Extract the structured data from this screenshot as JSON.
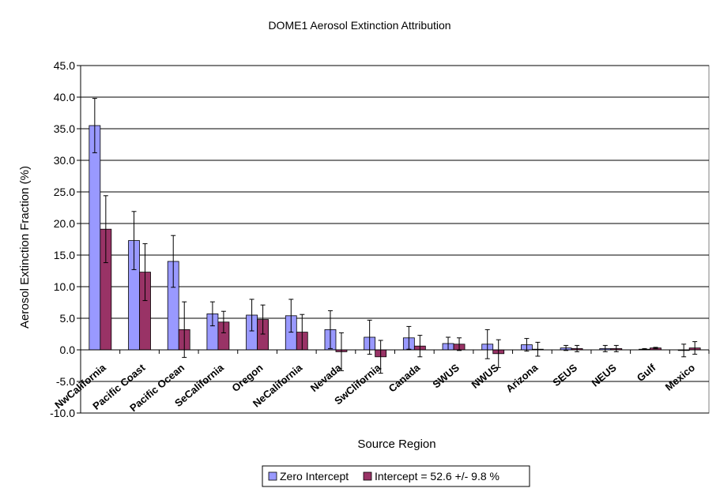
{
  "chart_data": {
    "type": "bar",
    "title": "DOME1 Aerosol Extinction Attribution",
    "xlabel": "Source Region",
    "ylabel": "Aerosol Extinction Fraction (%)",
    "ylim": [
      -10,
      45
    ],
    "ytick_step": 5,
    "ytick_labels": [
      "-10.0",
      "-5.0",
      "0.0",
      "5.0",
      "10.0",
      "15.0",
      "20.0",
      "25.0",
      "30.0",
      "35.0",
      "40.0",
      "45.0"
    ],
    "grid": true,
    "legend_position": "bottom",
    "categories": [
      "NwCalifornia",
      "Pacific Coast",
      "Pacific Ocean",
      "SeCalifornia",
      "Oregon",
      "NeCalifornia",
      "Nevada",
      "SwClifornia",
      "Canada",
      "SWUS",
      "NWUS",
      "Arizona",
      "SEUS",
      "NEUS",
      "Gulf",
      "Mexico"
    ],
    "series": [
      {
        "name": "Zero Intercept",
        "color": "#9999ff",
        "values": [
          35.5,
          17.3,
          14.0,
          5.7,
          5.5,
          5.4,
          3.2,
          2.0,
          1.9,
          1.0,
          0.9,
          0.8,
          0.3,
          0.2,
          0.1,
          -0.1
        ],
        "errors": [
          4.3,
          4.6,
          4.1,
          1.9,
          2.5,
          2.6,
          3.0,
          2.7,
          1.8,
          1.0,
          2.3,
          1.0,
          0.4,
          0.5,
          0.1,
          1.0
        ]
      },
      {
        "name": "Intercept = 52.6 +/- 9.8 %",
        "color": "#993366",
        "values": [
          19.1,
          12.3,
          3.2,
          4.4,
          4.8,
          2.8,
          -0.3,
          -1.1,
          0.6,
          0.9,
          -0.6,
          0.1,
          0.2,
          0.2,
          0.3,
          0.3
        ],
        "errors": [
          5.3,
          4.5,
          4.4,
          1.7,
          2.3,
          2.8,
          3.0,
          2.6,
          1.7,
          1.0,
          2.2,
          1.1,
          0.5,
          0.5,
          0.1,
          1.0
        ]
      }
    ]
  }
}
